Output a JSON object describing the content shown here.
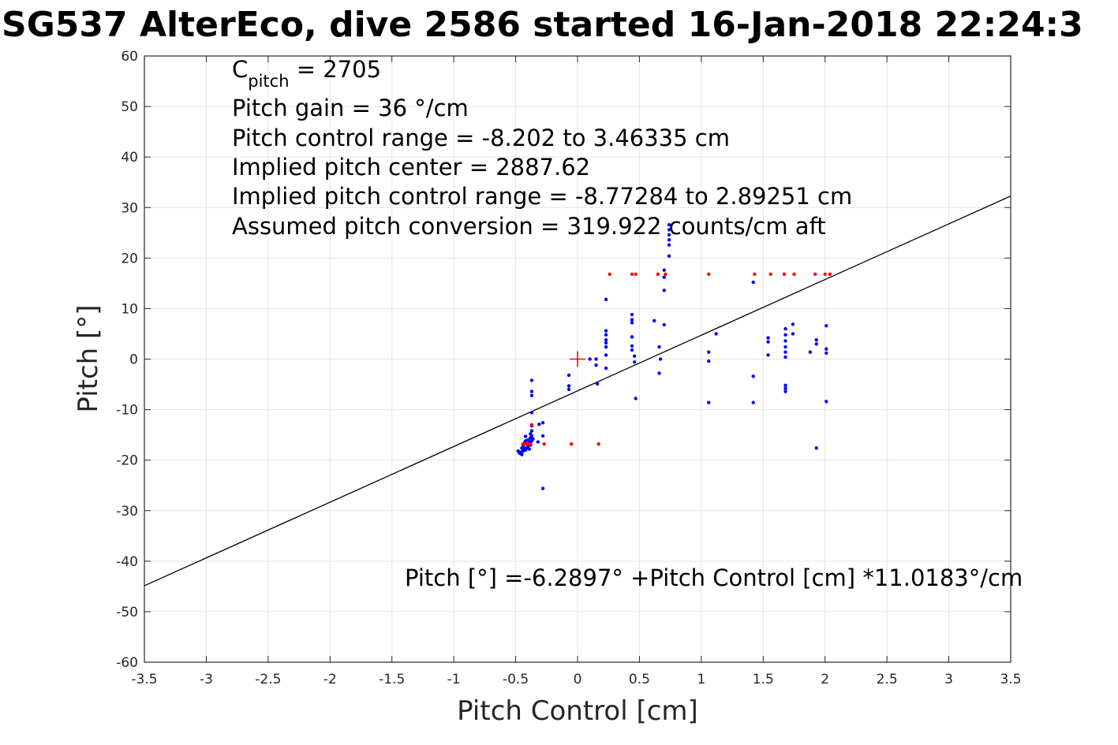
{
  "chart_data": {
    "type": "scatter",
    "title": "SG537 AlterEco, dive 2586 started 16-Jan-2018 22:24:3",
    "xlabel": "Pitch Control [cm]",
    "ylabel": "Pitch [°]",
    "xlim": [
      -3.5,
      3.5
    ],
    "ylim": [
      -60,
      60
    ],
    "xticks": [
      -3.5,
      -3,
      -2.5,
      -2,
      -1.5,
      -1,
      -0.5,
      0,
      0.5,
      1,
      1.5,
      2,
      2.5,
      3,
      3.5
    ],
    "xtick_labels": [
      "-3.5",
      "-3",
      "-2.5",
      "-2",
      "-1.5",
      "-1",
      "-0.5",
      "0",
      "0.5",
      "1",
      "1.5",
      "2",
      "2.5",
      "3",
      "3.5"
    ],
    "yticks": [
      -60,
      -50,
      -40,
      -30,
      -20,
      -10,
      0,
      10,
      20,
      30,
      40,
      50,
      60
    ],
    "ytick_labels": [
      "-60",
      "-50",
      "-40",
      "-30",
      "-20",
      "-10",
      "0",
      "10",
      "20",
      "30",
      "40",
      "50",
      "60"
    ],
    "grid": true,
    "annotations": {
      "c_pitch_main": "C",
      "c_pitch_sub": "pitch",
      "c_pitch_rest": " = 2705",
      "pitch_gain": "Pitch gain = 36 °/cm",
      "control_range": "Pitch control range = -8.202 to 3.46335 cm",
      "implied_center": "Implied pitch center = 2887.62",
      "implied_range": "Implied pitch control range = -8.77284 to 2.89251 cm",
      "conversion": "Assumed pitch conversion = 319.922 counts/cm aft",
      "fit_equation": "Pitch [°] =-6.2897° +Pitch Control [cm] *11.0183°/cm"
    },
    "fit_line": {
      "intercept": -6.2897,
      "slope": 11.0183,
      "color": "#000000"
    },
    "center_marker": {
      "x": 0,
      "y": 0,
      "color": "#ff0000",
      "symbol": "plus"
    },
    "series": [
      {
        "color": "#0000ff",
        "points": [
          [
            -0.48,
            -18.2
          ],
          [
            -0.47,
            -18.6
          ],
          [
            -0.46,
            -18.4
          ],
          [
            -0.45,
            -17.6
          ],
          [
            -0.45,
            -18.9
          ],
          [
            -0.44,
            -17.0
          ],
          [
            -0.44,
            -18.2
          ],
          [
            -0.43,
            -16.6
          ],
          [
            -0.43,
            -17.6
          ],
          [
            -0.42,
            -15.3
          ],
          [
            -0.42,
            -16.2
          ],
          [
            -0.42,
            -18.0
          ],
          [
            -0.41,
            -16.8
          ],
          [
            -0.41,
            -17.6
          ],
          [
            -0.4,
            -16.0
          ],
          [
            -0.4,
            -17.2
          ],
          [
            -0.39,
            -17.8
          ],
          [
            -0.39,
            -16.4
          ],
          [
            -0.38,
            -15.6
          ],
          [
            -0.38,
            -14.8
          ],
          [
            -0.38,
            -17.0
          ],
          [
            -0.37,
            -13.2
          ],
          [
            -0.37,
            -14.2
          ],
          [
            -0.37,
            -15.2
          ],
          [
            -0.37,
            -16.2
          ],
          [
            -0.37,
            -10.6
          ],
          [
            -0.37,
            -6.4
          ],
          [
            -0.37,
            -7.2
          ],
          [
            -0.37,
            -4.2
          ],
          [
            -0.36,
            -15.8
          ],
          [
            -0.32,
            -16.4
          ],
          [
            -0.31,
            -12.9
          ],
          [
            -0.28,
            -12.6
          ],
          [
            -0.28,
            -15.2
          ],
          [
            -0.28,
            -25.6
          ],
          [
            -0.07,
            -3.2
          ],
          [
            -0.07,
            -5.3
          ],
          [
            -0.07,
            -6.0
          ],
          [
            0.1,
            0.0
          ],
          [
            0.15,
            0.0
          ],
          [
            0.15,
            -1.2
          ],
          [
            0.16,
            -4.9
          ],
          [
            0.23,
            11.8
          ],
          [
            0.23,
            5.6
          ],
          [
            0.23,
            4.8
          ],
          [
            0.23,
            3.8
          ],
          [
            0.23,
            3.2
          ],
          [
            0.23,
            2.4
          ],
          [
            0.23,
            0.8
          ],
          [
            0.23,
            -1.8
          ],
          [
            0.44,
            8.8
          ],
          [
            0.44,
            7.8
          ],
          [
            0.44,
            7.2
          ],
          [
            0.44,
            4.4
          ],
          [
            0.44,
            2.6
          ],
          [
            0.44,
            1.8
          ],
          [
            0.46,
            0.6
          ],
          [
            0.46,
            -0.6
          ],
          [
            0.47,
            -7.8
          ],
          [
            0.62,
            7.6
          ],
          [
            0.66,
            2.4
          ],
          [
            0.67,
            0.0
          ],
          [
            0.66,
            -2.8
          ],
          [
            0.7,
            17.6
          ],
          [
            0.7,
            16.2
          ],
          [
            0.7,
            13.6
          ],
          [
            0.7,
            6.8
          ],
          [
            0.74,
            26.6
          ],
          [
            0.74,
            25.6
          ],
          [
            0.74,
            24.6
          ],
          [
            0.74,
            23.6
          ],
          [
            0.74,
            22.6
          ],
          [
            0.74,
            20.4
          ],
          [
            1.06,
            1.4
          ],
          [
            1.06,
            -0.4
          ],
          [
            1.06,
            -8.6
          ],
          [
            1.12,
            5.0
          ],
          [
            1.42,
            15.2
          ],
          [
            1.42,
            -3.4
          ],
          [
            1.42,
            -8.6
          ],
          [
            1.54,
            4.2
          ],
          [
            1.54,
            3.4
          ],
          [
            1.54,
            0.8
          ],
          [
            1.68,
            6.0
          ],
          [
            1.68,
            4.8
          ],
          [
            1.68,
            3.6
          ],
          [
            1.68,
            2.4
          ],
          [
            1.68,
            1.4
          ],
          [
            1.68,
            0.4
          ],
          [
            1.68,
            -5.2
          ],
          [
            1.68,
            -5.8
          ],
          [
            1.68,
            -6.4
          ],
          [
            1.74,
            6.9
          ],
          [
            1.74,
            5.0
          ],
          [
            1.88,
            1.4
          ],
          [
            1.93,
            3.8
          ],
          [
            1.93,
            3.0
          ],
          [
            1.93,
            -17.6
          ],
          [
            2.01,
            6.6
          ],
          [
            2.01,
            2.0
          ],
          [
            2.01,
            1.2
          ],
          [
            2.01,
            -8.4
          ]
        ]
      },
      {
        "color": "#ff0000",
        "points": [
          [
            -0.44,
            -16.8
          ],
          [
            -0.43,
            -16.8
          ],
          [
            -0.42,
            -16.8
          ],
          [
            -0.41,
            -16.8
          ],
          [
            -0.4,
            -16.8
          ],
          [
            -0.39,
            -16.8
          ],
          [
            -0.38,
            -16.8
          ],
          [
            -0.37,
            -13.0
          ],
          [
            -0.27,
            -16.8
          ],
          [
            -0.05,
            -16.8
          ],
          [
            0.17,
            -16.8
          ],
          [
            0.26,
            16.8
          ],
          [
            0.44,
            16.8
          ],
          [
            0.47,
            16.8
          ],
          [
            0.65,
            16.8
          ],
          [
            0.71,
            16.8
          ],
          [
            1.06,
            16.8
          ],
          [
            1.43,
            16.8
          ],
          [
            1.56,
            16.8
          ],
          [
            1.67,
            16.8
          ],
          [
            1.75,
            16.8
          ],
          [
            1.92,
            16.8
          ],
          [
            2.0,
            16.8
          ],
          [
            2.04,
            16.8
          ]
        ]
      }
    ]
  }
}
